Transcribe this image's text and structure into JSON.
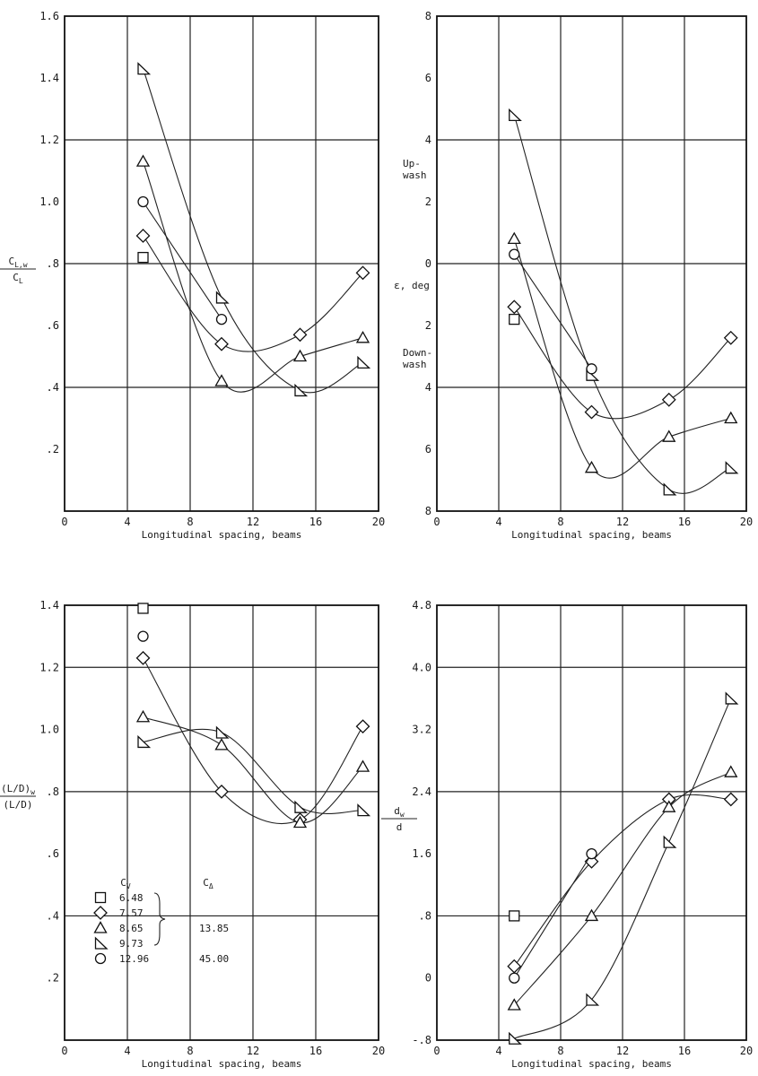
{
  "chart_data": [
    {
      "type": "line",
      "xlabel": "Longitudinal spacing, beams",
      "ylabel": "C_L,w / C_L",
      "ylabel_num": "C",
      "ylabel_num_sub": "L,w",
      "ylabel_den": "C",
      "ylabel_den_sub": "L",
      "xlim": [
        0,
        20
      ],
      "ylim": [
        0,
        1.6
      ],
      "xticks": [
        "0",
        "4",
        "8",
        "12",
        "16",
        "20"
      ],
      "yticks": [
        "",
        ".2",
        ".4",
        ".6",
        ".8",
        "1.0",
        "1.2",
        "1.4",
        "1.6"
      ],
      "grid": true,
      "series": [
        {
          "marker": "square",
          "x": [
            5
          ],
          "y": [
            0.82
          ]
        },
        {
          "marker": "diamond",
          "x": [
            5,
            10,
            15,
            19
          ],
          "y": [
            0.89,
            0.54,
            0.57,
            0.77
          ]
        },
        {
          "marker": "triangle",
          "x": [
            5,
            10,
            15,
            19
          ],
          "y": [
            1.13,
            0.42,
            0.5,
            0.56
          ]
        },
        {
          "marker": "flag",
          "x": [
            5,
            10,
            15,
            19
          ],
          "y": [
            1.43,
            0.69,
            0.39,
            0.48
          ]
        },
        {
          "marker": "circle",
          "x": [
            5,
            10
          ],
          "y": [
            1.0,
            0.62
          ]
        }
      ]
    },
    {
      "type": "line",
      "xlabel": "Longitudinal spacing, beams",
      "ylabel": "ε, deg",
      "upwash_label": [
        "Up-",
        "wash"
      ],
      "downwash_label": [
        "Down-",
        "wash"
      ],
      "xlim": [
        0,
        20
      ],
      "ylim": [
        -8,
        8
      ],
      "xticks": [
        "0",
        "4",
        "8",
        "12",
        "16",
        "20"
      ],
      "yticks": [
        "8",
        "6",
        "4",
        "2",
        "0",
        "2",
        "4",
        "6",
        "8"
      ],
      "grid": true,
      "series": [
        {
          "marker": "square",
          "x": [
            5
          ],
          "y": [
            -1.8
          ]
        },
        {
          "marker": "diamond",
          "x": [
            5,
            10,
            15,
            19
          ],
          "y": [
            -1.4,
            -4.8,
            -4.4,
            -2.4
          ]
        },
        {
          "marker": "triangle",
          "x": [
            5,
            10,
            15,
            19
          ],
          "y": [
            0.8,
            -6.6,
            -5.6,
            -5.0
          ]
        },
        {
          "marker": "flag",
          "x": [
            5,
            10,
            15,
            19
          ],
          "y": [
            4.8,
            -3.6,
            -7.3,
            -6.6
          ]
        },
        {
          "marker": "circle",
          "x": [
            5,
            10
          ],
          "y": [
            0.3,
            -3.4
          ]
        }
      ]
    },
    {
      "type": "line",
      "xlabel": "Longitudinal spacing, beams",
      "ylabel": "(L/D)_w / (L/D)",
      "ylabel_num": "(L/D)",
      "ylabel_num_sub": "w",
      "ylabel_den": "(L/D)",
      "xlim": [
        0,
        20
      ],
      "ylim": [
        0,
        1.4
      ],
      "xticks": [
        "0",
        "4",
        "8",
        "12",
        "16",
        "20"
      ],
      "yticks": [
        "",
        ".2",
        ".4",
        ".6",
        ".8",
        "1.0",
        "1.2",
        "1.4"
      ],
      "grid": true,
      "series": [
        {
          "marker": "square",
          "x": [
            5
          ],
          "y": [
            1.39
          ]
        },
        {
          "marker": "diamond",
          "x": [
            5,
            10,
            15,
            19
          ],
          "y": [
            1.23,
            0.8,
            0.71,
            1.01
          ]
        },
        {
          "marker": "triangle",
          "x": [
            5,
            10,
            15,
            19
          ],
          "y": [
            1.04,
            0.95,
            0.7,
            0.88
          ]
        },
        {
          "marker": "flag",
          "x": [
            5,
            10,
            15,
            19
          ],
          "y": [
            0.96,
            0.99,
            0.75,
            0.74
          ]
        },
        {
          "marker": "circle",
          "x": [
            5
          ],
          "y": [
            1.3
          ]
        }
      ],
      "legend": {
        "placement": "lower-left",
        "header_cv": "C",
        "header_cv_sub": "V",
        "header_cd": "C",
        "header_cd_sub": "Δ",
        "rows": [
          {
            "marker": "square",
            "cv": "6.48",
            "cd": ""
          },
          {
            "marker": "diamond",
            "cv": "7.57",
            "cd": ""
          },
          {
            "marker": "triangle",
            "cv": "8.65",
            "cd": "13.85"
          },
          {
            "marker": "flag",
            "cv": "9.73",
            "cd": ""
          },
          {
            "marker": "circle",
            "cv": "12.96",
            "cd": "45.00"
          }
        ]
      }
    },
    {
      "type": "line",
      "xlabel": "Longitudinal spacing, beams",
      "ylabel": "d_w / d",
      "ylabel_num": "d",
      "ylabel_num_sub": "w",
      "ylabel_den": "d",
      "xlim": [
        0,
        20
      ],
      "ylim": [
        -0.8,
        4.8
      ],
      "xticks": [
        "0",
        "4",
        "8",
        "12",
        "16",
        "20"
      ],
      "yticks": [
        "-.8",
        "0",
        ".8",
        "1.6",
        "2.4",
        "3.2",
        "4.0",
        "4.8"
      ],
      "grid": true,
      "series": [
        {
          "marker": "square",
          "x": [
            5
          ],
          "y": [
            0.8
          ]
        },
        {
          "marker": "diamond",
          "x": [
            5,
            10,
            15,
            19
          ],
          "y": [
            0.15,
            1.5,
            2.3,
            2.3
          ]
        },
        {
          "marker": "triangle",
          "x": [
            5,
            10,
            15,
            19
          ],
          "y": [
            -0.35,
            0.8,
            2.2,
            2.65
          ]
        },
        {
          "marker": "flag",
          "x": [
            5,
            10,
            15,
            19
          ],
          "y": [
            -0.78,
            -0.28,
            1.75,
            3.6
          ]
        },
        {
          "marker": "circle",
          "x": [
            5,
            10
          ],
          "y": [
            0.0,
            1.6
          ]
        }
      ]
    }
  ]
}
